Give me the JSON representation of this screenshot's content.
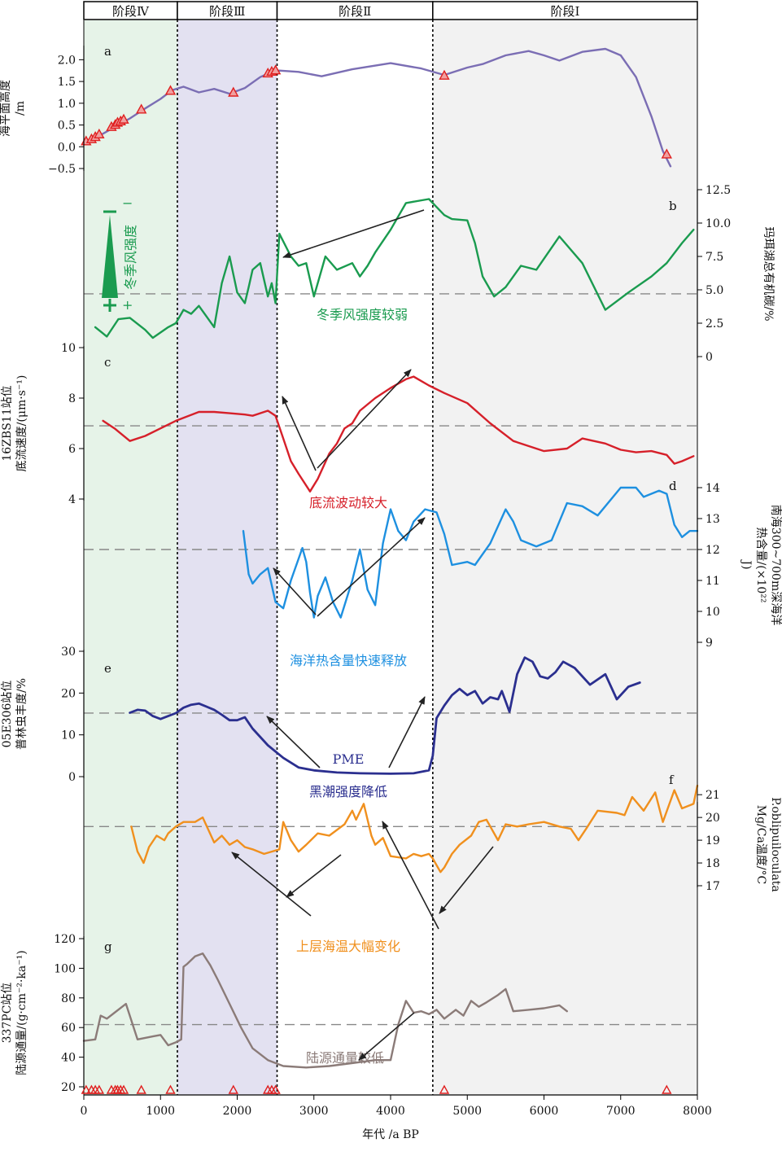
{
  "chart_data": {
    "type": "line",
    "x_axis": {
      "label": "年代 /a BP",
      "ticks": [
        0,
        1000,
        2000,
        3000,
        4000,
        5000,
        6000,
        7000,
        8000
      ],
      "range": [
        0,
        8000
      ]
    },
    "phases": [
      {
        "name": "阶段Ⅳ",
        "range": [
          0,
          1220
        ],
        "color": "#e6f3e8"
      },
      {
        "name": "阶段Ⅲ",
        "range": [
          1220,
          2520
        ],
        "color": "#e3e1f1"
      },
      {
        "name": "阶段Ⅱ",
        "range": [
          2520,
          4550
        ],
        "color": "#ffffff"
      },
      {
        "name": "阶段Ⅰ",
        "range": [
          4550,
          8000
        ],
        "color": "#f2f2f2"
      }
    ],
    "dates_markers": [
      30,
      100,
      150,
      200,
      360,
      410,
      440,
      480,
      520,
      750,
      1130,
      1950,
      2400,
      2450,
      2500,
      4700,
      7600
    ],
    "panels": [
      {
        "id": "a",
        "ylabel": "海平面高度 /m",
        "side": "left",
        "ylim": [
          -0.5,
          2.25
        ],
        "ticks": [
          -0.5,
          0,
          0.5,
          1.0,
          1.5,
          2.0
        ],
        "tick_labels": [
          "−0.5",
          "0.0",
          "0.5",
          "1.0",
          "1.5",
          "2.0"
        ],
        "color": "#7b6eb4",
        "x": [
          30,
          200,
          400,
          600,
          800,
          1000,
          1150,
          1300,
          1500,
          1700,
          1900,
          2100,
          2300,
          2450,
          2550,
          2800,
          3100,
          3500,
          4000,
          4400,
          4700,
          5000,
          5200,
          5500,
          5800,
          6000,
          6200,
          6500,
          6800,
          7000,
          7200,
          7400,
          7550,
          7650
        ],
        "y": [
          0.1,
          0.25,
          0.45,
          0.65,
          0.88,
          1.1,
          1.3,
          1.38,
          1.25,
          1.33,
          1.22,
          1.35,
          1.6,
          1.72,
          1.75,
          1.72,
          1.62,
          1.78,
          1.92,
          1.8,
          1.65,
          1.82,
          1.9,
          2.1,
          2.2,
          2.1,
          1.98,
          2.18,
          2.25,
          2.1,
          1.6,
          0.7,
          -0.1,
          -0.45
        ],
        "markers": [
          {
            "x": 30,
            "y": 0.12
          },
          {
            "x": 100,
            "y": 0.17
          },
          {
            "x": 150,
            "y": 0.22
          },
          {
            "x": 200,
            "y": 0.28
          },
          {
            "x": 360,
            "y": 0.45
          },
          {
            "x": 410,
            "y": 0.5
          },
          {
            "x": 440,
            "y": 0.55
          },
          {
            "x": 480,
            "y": 0.58
          },
          {
            "x": 520,
            "y": 0.62
          },
          {
            "x": 750,
            "y": 0.85
          },
          {
            "x": 1130,
            "y": 1.28
          },
          {
            "x": 1950,
            "y": 1.24
          },
          {
            "x": 2400,
            "y": 1.68
          },
          {
            "x": 2450,
            "y": 1.72
          },
          {
            "x": 2500,
            "y": 1.75
          },
          {
            "x": 4700,
            "y": 1.63
          },
          {
            "x": 7600,
            "y": -0.18
          }
        ]
      },
      {
        "id": "b",
        "ylabel": "玛珥湖总有机碳/%",
        "side": "right",
        "ylim": [
          0,
          12.5
        ],
        "ticks": [
          0,
          2.5,
          5.0,
          7.5,
          10.0,
          12.5
        ],
        "tick_labels": [
          "0",
          "2.5",
          "5.0",
          "7.5",
          "10.0",
          "12.5"
        ],
        "color": "#1a9b4f",
        "baseline": 4.7,
        "x": [
          150,
          300,
          450,
          600,
          800,
          900,
          1100,
          1200,
          1300,
          1400,
          1500,
          1700,
          1800,
          1900,
          2000,
          2100,
          2150,
          2200,
          2300,
          2400,
          2450,
          2500,
          2550,
          2700,
          2800,
          2900,
          3000,
          3150,
          3300,
          3500,
          3600,
          3700,
          3800,
          4000,
          4200,
          4500,
          4600,
          4700,
          4800,
          5000,
          5100,
          5200,
          5350,
          5500,
          5700,
          5900,
          6200,
          6500,
          6800,
          7100,
          7400,
          7600,
          7800,
          7950
        ],
        "y": [
          2.2,
          1.5,
          2.8,
          2.9,
          2.0,
          1.4,
          2.2,
          2.5,
          3.5,
          3.2,
          3.8,
          2.2,
          5.5,
          7.5,
          4.8,
          4.0,
          5.2,
          6.5,
          7.0,
          4.5,
          5.5,
          4.0,
          9.2,
          7.5,
          6.8,
          7.0,
          4.5,
          7.5,
          6.5,
          7.0,
          6.0,
          6.8,
          7.8,
          9.5,
          11.5,
          11.8,
          11.2,
          10.6,
          10.3,
          10.2,
          8.5,
          6.0,
          4.5,
          5.2,
          6.8,
          6.5,
          9.0,
          7.0,
          3.5,
          4.8,
          6.0,
          7.0,
          8.5,
          9.5
        ],
        "annotations": [
          "冬季风强度较弱"
        ],
        "scale_bar": {
          "label": "冬季风强度",
          "top": "−",
          "bottom": "+"
        }
      },
      {
        "id": "c",
        "ylabel": "16ZBS11站位 底流速度/(μm·s⁻¹)",
        "side": "left",
        "ylim": [
          4,
          10
        ],
        "ticks": [
          4,
          6,
          8,
          10
        ],
        "tick_labels": [
          "4",
          "6",
          "8",
          "10"
        ],
        "color": "#d6202a",
        "baseline": 6.9,
        "x": [
          250,
          400,
          600,
          800,
          1000,
          1200,
          1500,
          1700,
          1900,
          2100,
          2200,
          2400,
          2500,
          2600,
          2700,
          2800,
          2950,
          3050,
          3200,
          3300,
          3400,
          3500,
          3600,
          3800,
          4000,
          4200,
          4300,
          4500,
          4700,
          5000,
          5300,
          5600,
          6000,
          6300,
          6500,
          6800,
          7000,
          7200,
          7400,
          7600,
          7700,
          7800,
          7950
        ],
        "y": [
          7.1,
          6.8,
          6.3,
          6.5,
          6.8,
          7.1,
          7.45,
          7.45,
          7.4,
          7.35,
          7.3,
          7.5,
          7.3,
          6.4,
          5.5,
          5.0,
          4.3,
          4.8,
          5.8,
          6.2,
          6.8,
          7.0,
          7.5,
          8.0,
          8.4,
          8.75,
          8.85,
          8.5,
          8.2,
          7.8,
          7.0,
          6.3,
          5.9,
          6.0,
          6.4,
          6.2,
          5.95,
          5.85,
          5.9,
          5.75,
          5.4,
          5.5,
          5.7
        ],
        "annotations": [
          "底流波动较大"
        ]
      },
      {
        "id": "d",
        "ylabel": "南海300~700m深海洋 热含量/(×10²² J)",
        "side": "right",
        "ylim": [
          9,
          14
        ],
        "ticks": [
          9,
          10,
          11,
          12,
          13,
          14
        ],
        "tick_labels": [
          "9",
          "10",
          "11",
          "12",
          "13",
          "14"
        ],
        "color": "#1e90e0",
        "baseline": 12.0,
        "x": [
          2080,
          2150,
          2200,
          2300,
          2400,
          2500,
          2600,
          2700,
          2850,
          2900,
          2950,
          3000,
          3050,
          3150,
          3250,
          3350,
          3500,
          3600,
          3700,
          3800,
          3900,
          4000,
          4100,
          4200,
          4300,
          4450,
          4600,
          4700,
          4800,
          5000,
          5100,
          5300,
          5500,
          5600,
          5700,
          5900,
          6100,
          6300,
          6500,
          6700,
          7000,
          7200,
          7300,
          7500,
          7600,
          7700,
          7800,
          7900,
          8000
        ],
        "y": [
          12.6,
          11.2,
          10.9,
          11.2,
          11.4,
          10.3,
          10.1,
          11.0,
          12.05,
          11.6,
          10.6,
          9.8,
          10.5,
          11.1,
          10.3,
          9.8,
          11.0,
          12.0,
          10.7,
          10.2,
          12.2,
          13.3,
          12.6,
          12.3,
          12.9,
          13.3,
          13.2,
          12.5,
          11.5,
          11.6,
          11.5,
          12.2,
          13.3,
          12.9,
          12.3,
          12.1,
          12.3,
          13.5,
          13.4,
          13.1,
          14.0,
          14.0,
          13.7,
          13.9,
          13.8,
          12.8,
          12.4,
          12.6,
          12.6
        ],
        "annotations": [
          "海洋热含量快速释放"
        ]
      },
      {
        "id": "e",
        "ylabel": "05E306站位 普林虫丰度/%",
        "side": "left",
        "ylim": [
          0,
          30
        ],
        "ticks": [
          0,
          10,
          20,
          30
        ],
        "tick_labels": [
          "0",
          "10",
          "20",
          "30"
        ],
        "color": "#2b2f8f",
        "baseline": 15.2,
        "x": [
          600,
          700,
          800,
          900,
          1000,
          1100,
          1200,
          1300,
          1400,
          1500,
          1700,
          1800,
          1900,
          2000,
          2100,
          2200,
          2400,
          2600,
          2800,
          3000,
          3300,
          3600,
          4000,
          4300,
          4500,
          4550,
          4600,
          4700,
          4800,
          4900,
          5000,
          5100,
          5200,
          5300,
          5400,
          5450,
          5550,
          5650,
          5750,
          5850,
          5950,
          6050,
          6150,
          6250,
          6400,
          6600,
          6800,
          6950,
          7100,
          7250
        ],
        "y": [
          15.3,
          16.0,
          15.8,
          14.5,
          13.8,
          14.5,
          15.2,
          16.5,
          17.2,
          17.5,
          16.0,
          14.8,
          13.5,
          13.5,
          14.2,
          11.5,
          7.5,
          4.5,
          2.2,
          1.5,
          1.0,
          0.8,
          0.7,
          0.8,
          1.5,
          5.0,
          14.0,
          17.0,
          19.5,
          21.0,
          19.5,
          20.5,
          17.5,
          19.0,
          18.5,
          20.5,
          15.5,
          24.5,
          28.5,
          27.5,
          24.0,
          23.5,
          25.0,
          27.5,
          26.0,
          22.0,
          24.5,
          18.5,
          21.5,
          22.5
        ],
        "annotations": [
          "PME",
          "黑潮强度降低"
        ]
      },
      {
        "id": "f",
        "ylabel": "P.oblipuiloculata Mg/Ca温度/°C",
        "side": "right",
        "ylim": [
          17,
          21.4
        ],
        "ticks": [
          17,
          18,
          19,
          20,
          21
        ],
        "tick_labels": [
          "17",
          "18",
          "19",
          "20",
          "21"
        ],
        "color": "#f0901e",
        "baseline": 19.6,
        "x": [
          620,
          700,
          780,
          850,
          950,
          1050,
          1100,
          1200,
          1300,
          1450,
          1550,
          1700,
          1800,
          1900,
          2000,
          2100,
          2200,
          2350,
          2450,
          2550,
          2600,
          2700,
          2800,
          2900,
          3050,
          3200,
          3400,
          3500,
          3550,
          3650,
          3750,
          3800,
          3900,
          4000,
          4200,
          4300,
          4400,
          4500,
          4550,
          4650,
          4700,
          4800,
          4900,
          5050,
          5150,
          5250,
          5400,
          5500,
          5650,
          5800,
          6000,
          6200,
          6350,
          6450,
          6550,
          6700,
          6950,
          7050,
          7150,
          7300,
          7450,
          7550,
          7700,
          7800,
          7950,
          8000
        ],
        "y": [
          19.6,
          18.5,
          18.0,
          18.7,
          19.2,
          19.0,
          19.3,
          19.6,
          19.8,
          19.8,
          20.0,
          18.9,
          19.2,
          18.8,
          19.0,
          18.7,
          18.6,
          18.4,
          18.5,
          18.6,
          19.8,
          19.0,
          18.5,
          18.8,
          19.3,
          19.2,
          19.7,
          20.3,
          19.9,
          20.6,
          19.2,
          18.8,
          19.1,
          18.3,
          18.2,
          18.4,
          18.3,
          18.4,
          18.2,
          17.6,
          17.8,
          18.4,
          18.8,
          19.2,
          19.8,
          19.9,
          19.0,
          19.7,
          19.6,
          19.7,
          19.8,
          19.6,
          19.5,
          19.0,
          19.5,
          20.3,
          20.2,
          20.1,
          20.9,
          20.3,
          21.1,
          19.8,
          21.2,
          20.4,
          20.6,
          21.4
        ],
        "annotations": [
          "上层海温大幅变化"
        ]
      },
      {
        "id": "g",
        "ylabel": "337PC站位 陆源通量/(g·cm⁻²·ka⁻¹)",
        "side": "left",
        "ylim": [
          20,
          120
        ],
        "ticks": [
          20,
          40,
          60,
          80,
          100,
          120
        ],
        "tick_labels": [
          "20",
          "40",
          "60",
          "80",
          "100",
          "120"
        ],
        "color": "#8b7b78",
        "baseline": 62,
        "x": [
          0,
          150,
          220,
          300,
          400,
          550,
          700,
          900,
          1000,
          1100,
          1200,
          1270,
          1300,
          1350,
          1450,
          1550,
          1650,
          1750,
          1900,
          2050,
          2200,
          2400,
          2600,
          2900,
          3200,
          3500,
          3800,
          4000,
          4100,
          4200,
          4300,
          4400,
          4500,
          4600,
          4700,
          4850,
          4950,
          5050,
          5150,
          5250,
          5400,
          5500,
          5600,
          5800,
          6000,
          6200,
          6300
        ],
        "y": [
          51,
          52,
          68,
          66,
          70,
          76,
          52,
          54,
          55,
          48,
          50,
          52,
          101,
          103,
          108,
          110,
          102,
          92,
          76,
          60,
          46,
          38,
          34,
          33,
          34,
          36,
          38,
          38,
          62,
          78,
          70,
          71,
          69,
          72,
          66,
          72,
          68,
          78,
          74,
          77,
          82,
          86,
          71,
          72,
          73,
          75,
          71
        ],
        "annotations": [
          "陆源通量较低"
        ]
      }
    ]
  }
}
